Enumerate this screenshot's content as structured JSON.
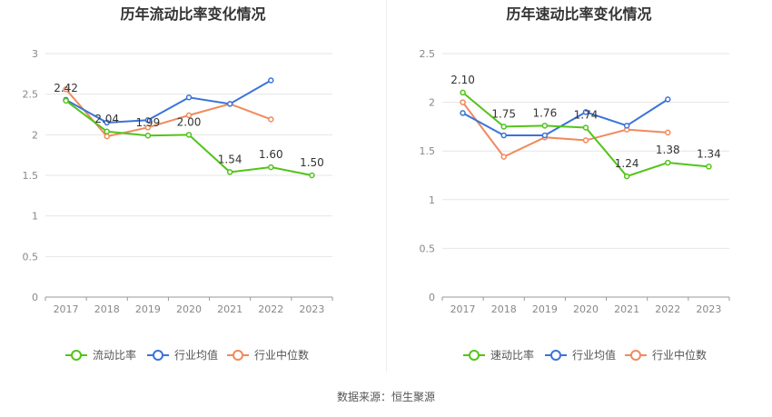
{
  "source": "数据来源：恒生聚源",
  "chart_data": [
    {
      "type": "line",
      "title": "历年流动比率变化情况",
      "categories": [
        "2017",
        "2018",
        "2019",
        "2020",
        "2021",
        "2022",
        "2023"
      ],
      "ylim": [
        0,
        3
      ],
      "yticks": [
        "0",
        "0.5",
        "1",
        "1.5",
        "2",
        "2.5",
        "3"
      ],
      "grid": true,
      "legend": "bottom",
      "series": [
        {
          "name": "流动比率",
          "color": "#52c41a",
          "values": [
            2.42,
            2.04,
            1.99,
            2.0,
            1.54,
            1.6,
            1.5
          ],
          "labels": [
            "2.42",
            "2.04",
            "1.99",
            "2.00",
            "1.54",
            "1.60",
            "1.50"
          ]
        },
        {
          "name": "行业均值",
          "color": "#3b73d9",
          "values": [
            2.43,
            2.15,
            2.18,
            2.46,
            2.38,
            2.67,
            null
          ]
        },
        {
          "name": "行业中位数",
          "color": "#f08a5d",
          "values": [
            2.56,
            1.98,
            2.09,
            2.24,
            2.38,
            2.19,
            null
          ]
        }
      ]
    },
    {
      "type": "line",
      "title": "历年速动比率变化情况",
      "categories": [
        "2017",
        "2018",
        "2019",
        "2020",
        "2021",
        "2022",
        "2023"
      ],
      "ylim": [
        0,
        2.5
      ],
      "yticks": [
        "0",
        "0.5",
        "1",
        "1.5",
        "2",
        "2.5"
      ],
      "grid": true,
      "legend": "bottom",
      "series": [
        {
          "name": "速动比率",
          "color": "#52c41a",
          "values": [
            2.1,
            1.75,
            1.76,
            1.74,
            1.24,
            1.38,
            1.34
          ],
          "labels": [
            "2.10",
            "1.75",
            "1.76",
            "1.74",
            "1.24",
            "1.38",
            "1.34"
          ]
        },
        {
          "name": "行业均值",
          "color": "#3b73d9",
          "values": [
            1.89,
            1.66,
            1.66,
            1.9,
            1.76,
            2.03,
            null
          ]
        },
        {
          "name": "行业中位数",
          "color": "#f08a5d",
          "values": [
            2.0,
            1.44,
            1.64,
            1.61,
            1.72,
            1.69,
            null
          ]
        }
      ]
    }
  ]
}
